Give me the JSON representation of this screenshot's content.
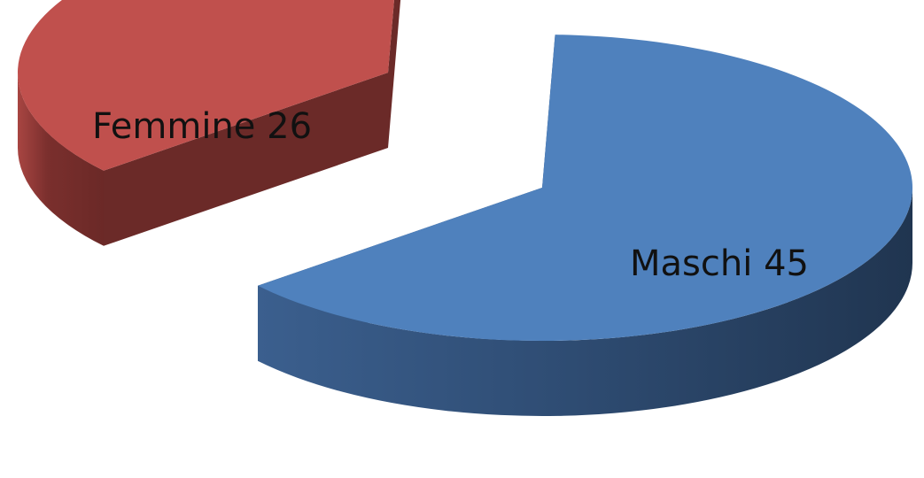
{
  "chart_data": {
    "type": "pie",
    "style": "3d-exploded",
    "grid": false,
    "legend": "none",
    "slices": [
      {
        "name": "Maschi",
        "value": 45,
        "color": "#4F81BD",
        "label": "Maschi 45"
      },
      {
        "name": "Femmine",
        "value": 26,
        "color": "#C0504D",
        "label": "Femmine 26"
      }
    ]
  }
}
